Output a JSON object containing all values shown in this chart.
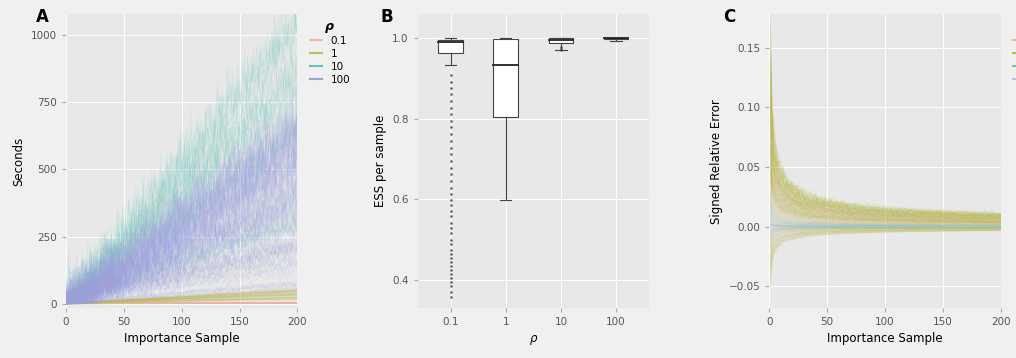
{
  "panel_A": {
    "xlabel": "Importance Sample",
    "ylabel": "Seconds",
    "xlim": [
      0,
      200
    ],
    "ylim": [
      -15,
      1075
    ],
    "yticks": [
      0,
      250,
      500,
      750,
      1000
    ],
    "xticks": [
      0,
      50,
      100,
      150,
      200
    ],
    "n_lines_per_rho": 50,
    "bg_color": "#e8e8e8"
  },
  "panel_B": {
    "xlabel": "ρ",
    "ylabel": "ESS per sample",
    "bg_color": "#e8e8e8",
    "xticklabels": [
      "0.1",
      "1",
      "10",
      "100"
    ],
    "yticks": [
      0.4,
      0.6,
      0.8,
      1.0
    ],
    "ylim": [
      0.33,
      1.06
    ],
    "boxplots": {
      "0.1": {
        "median": 0.99,
        "q1": 0.965,
        "q3": 0.997,
        "whislo": 0.935,
        "whishi": 1.0,
        "fliers_low": [
          0.358,
          0.37,
          0.385,
          0.395,
          0.405,
          0.415,
          0.425,
          0.435,
          0.445,
          0.455,
          0.465,
          0.475,
          0.488,
          0.5,
          0.515,
          0.528,
          0.542,
          0.558,
          0.572,
          0.585,
          0.598,
          0.612,
          0.628,
          0.645,
          0.662,
          0.678,
          0.695,
          0.712,
          0.728,
          0.745,
          0.762,
          0.779,
          0.795,
          0.812,
          0.828,
          0.845,
          0.862,
          0.878,
          0.892,
          0.908
        ]
      },
      "1": {
        "median": 0.935,
        "q1": 0.805,
        "q3": 0.998,
        "whislo": 0.598,
        "whishi": 1.0,
        "fliers_low": []
      },
      "10": {
        "median": 0.995,
        "q1": 0.988,
        "q3": 1.0,
        "whislo": 0.972,
        "whishi": 1.0,
        "fliers_low": [
          0.972,
          0.975,
          0.978
        ]
      },
      "100": {
        "median": 1.0,
        "q1": 0.998,
        "q3": 1.0,
        "whislo": 0.993,
        "whishi": 1.0,
        "fliers_low": []
      }
    }
  },
  "panel_C": {
    "xlabel": "Importance Sample",
    "ylabel": "Signed Relative Error",
    "xlim": [
      0,
      200
    ],
    "ylim": [
      -0.068,
      0.178
    ],
    "yticks": [
      -0.05,
      0.0,
      0.05,
      0.1,
      0.15
    ],
    "xticks": [
      0,
      50,
      100,
      150,
      200
    ],
    "bg_color": "#e8e8e8"
  },
  "legend": {
    "rho_label": "ρ",
    "entries": [
      "0.1",
      "1",
      "10",
      "100"
    ],
    "colors_A": [
      "#f5b0aa",
      "#c0be55",
      "#60c8b8",
      "#a0a0e0"
    ],
    "colors_C": [
      "#f5b0aa",
      "#b8be40",
      "#60c8b8",
      "#c0c0ee"
    ]
  }
}
